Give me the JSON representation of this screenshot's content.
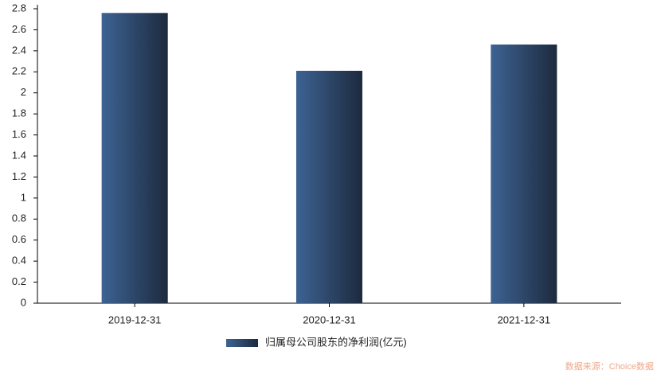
{
  "chart_data": {
    "type": "bar",
    "categories": [
      "2019-12-31",
      "2020-12-31",
      "2021-12-31"
    ],
    "series": [
      {
        "name": "归属母公司股东的净利润(亿元)",
        "gradient": [
          "#3d6393",
          "#1d2a3e"
        ],
        "values": [
          2.76,
          2.21,
          2.46
        ]
      }
    ],
    "ylim": [
      0,
      2.8
    ],
    "yticks": [
      0,
      0.2,
      0.4,
      0.6,
      0.8,
      1,
      1.2,
      1.4,
      1.6,
      1.8,
      2,
      2.2,
      2.4,
      2.6,
      2.8
    ],
    "legend": "bottom",
    "source": "数据来源：Choice数据"
  }
}
